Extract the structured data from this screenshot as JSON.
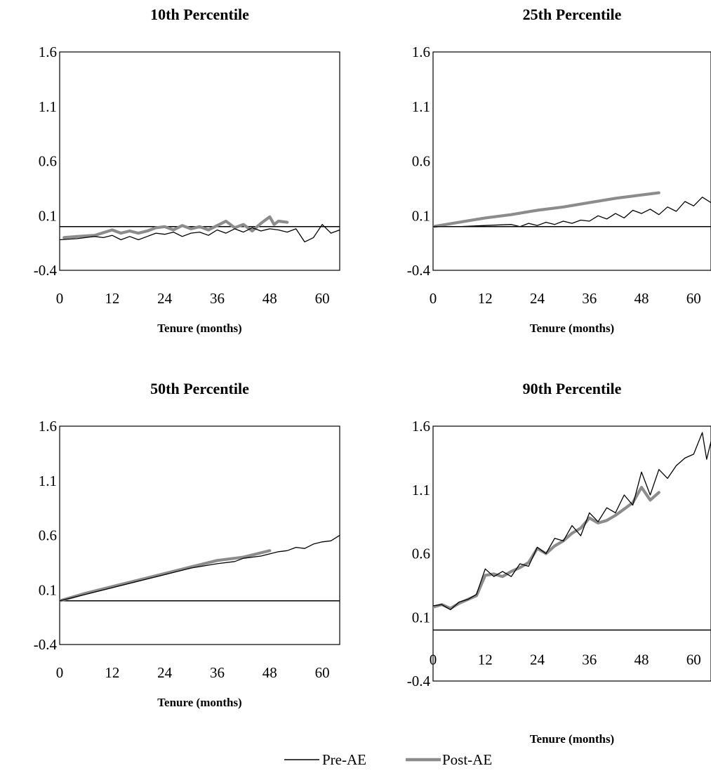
{
  "chart_data": [
    {
      "type": "line",
      "title": "10th Percentile",
      "xlabel": "Tenure (months)",
      "ylabel": "",
      "xlim": [
        0,
        64
      ],
      "ylim": [
        -0.4,
        1.6
      ],
      "xticks": [
        0,
        12,
        24,
        36,
        48,
        60
      ],
      "yticks": [
        -0.4,
        0.1,
        0.6,
        1.1,
        1.6
      ],
      "baseline_y": 0,
      "series": [
        {
          "name": "Pre-AE",
          "x": [
            0,
            4,
            8,
            10,
            12,
            14,
            16,
            18,
            20,
            22,
            24,
            26,
            28,
            30,
            32,
            34,
            36,
            38,
            40,
            42,
            44,
            46,
            48,
            50,
            52,
            54,
            56,
            58,
            60,
            62,
            64
          ],
          "y": [
            -0.12,
            -0.11,
            -0.09,
            -0.1,
            -0.08,
            -0.12,
            -0.09,
            -0.12,
            -0.09,
            -0.06,
            -0.07,
            -0.05,
            -0.09,
            -0.06,
            -0.05,
            -0.08,
            -0.03,
            -0.06,
            -0.02,
            -0.05,
            -0.01,
            -0.04,
            -0.02,
            -0.03,
            -0.05,
            -0.02,
            -0.14,
            -0.1,
            0.02,
            -0.06,
            -0.03
          ]
        },
        {
          "name": "Post-AE",
          "x": [
            1,
            4,
            8,
            12,
            14,
            16,
            18,
            20,
            22,
            24,
            26,
            28,
            30,
            32,
            34,
            36,
            38,
            40,
            42,
            44,
            46,
            48,
            49,
            50,
            52
          ],
          "y": [
            -0.1,
            -0.09,
            -0.08,
            -0.03,
            -0.06,
            -0.04,
            -0.06,
            -0.04,
            -0.01,
            0.0,
            -0.03,
            0.01,
            -0.02,
            0.0,
            -0.03,
            0.01,
            0.05,
            -0.01,
            0.02,
            -0.04,
            0.03,
            0.09,
            0.02,
            0.05,
            0.04
          ]
        }
      ]
    },
    {
      "type": "line",
      "title": "25th Percentile",
      "xlabel": "Tenure (months)",
      "ylabel": "",
      "xlim": [
        0,
        64
      ],
      "ylim": [
        -0.4,
        1.6
      ],
      "xticks": [
        0,
        12,
        24,
        36,
        48,
        60
      ],
      "yticks": [
        -0.4,
        0.1,
        0.6,
        1.1,
        1.6
      ],
      "baseline_y": 0,
      "series": [
        {
          "name": "Pre-AE",
          "x": [
            0,
            6,
            12,
            18,
            20,
            22,
            24,
            26,
            28,
            30,
            32,
            34,
            36,
            38,
            40,
            42,
            44,
            46,
            48,
            50,
            52,
            54,
            56,
            58,
            60,
            62,
            64
          ],
          "y": [
            0.0,
            0.0,
            0.01,
            0.02,
            0.0,
            0.03,
            0.01,
            0.04,
            0.02,
            0.05,
            0.03,
            0.06,
            0.05,
            0.1,
            0.07,
            0.12,
            0.08,
            0.15,
            0.12,
            0.16,
            0.11,
            0.18,
            0.14,
            0.23,
            0.19,
            0.27,
            0.22
          ]
        },
        {
          "name": "Post-AE",
          "x": [
            0,
            6,
            12,
            18,
            24,
            30,
            36,
            42,
            48,
            52
          ],
          "y": [
            0.0,
            0.04,
            0.08,
            0.11,
            0.15,
            0.18,
            0.22,
            0.26,
            0.29,
            0.31
          ]
        }
      ]
    },
    {
      "type": "line",
      "title": "50th Percentile",
      "xlabel": "Tenure (months)",
      "ylabel": "",
      "xlim": [
        0,
        64
      ],
      "ylim": [
        -0.4,
        1.6
      ],
      "xticks": [
        0,
        12,
        24,
        36,
        48,
        60
      ],
      "yticks": [
        -0.4,
        0.1,
        0.6,
        1.1,
        1.6
      ],
      "baseline_y": 0,
      "series": [
        {
          "name": "Pre-AE",
          "x": [
            0,
            6,
            12,
            18,
            24,
            30,
            36,
            40,
            42,
            46,
            48,
            50,
            52,
            54,
            56,
            58,
            60,
            62,
            64
          ],
          "y": [
            0.0,
            0.06,
            0.12,
            0.18,
            0.24,
            0.3,
            0.34,
            0.36,
            0.39,
            0.41,
            0.43,
            0.45,
            0.46,
            0.49,
            0.48,
            0.52,
            0.54,
            0.55,
            0.6
          ]
        },
        {
          "name": "Post-AE",
          "x": [
            0,
            6,
            12,
            18,
            24,
            30,
            36,
            42,
            48
          ],
          "y": [
            0.0,
            0.07,
            0.13,
            0.19,
            0.25,
            0.31,
            0.37,
            0.4,
            0.46
          ]
        }
      ]
    },
    {
      "type": "line",
      "title": "90th Percentile",
      "xlabel": "Tenure (months)",
      "ylabel": "",
      "xlim": [
        0,
        64
      ],
      "ylim": [
        -0.4,
        1.6
      ],
      "xticks": [
        0,
        12,
        24,
        36,
        48,
        60
      ],
      "yticks": [
        -0.4,
        0.1,
        0.6,
        1.1,
        1.6
      ],
      "baseline_y": 0,
      "series": [
        {
          "name": "Pre-AE",
          "x": [
            0,
            2,
            4,
            6,
            8,
            10,
            12,
            14,
            16,
            18,
            20,
            22,
            24,
            26,
            28,
            30,
            32,
            34,
            36,
            38,
            40,
            42,
            44,
            46,
            48,
            50,
            52,
            54,
            56,
            58,
            60,
            62,
            63,
            64
          ],
          "y": [
            0.19,
            0.2,
            0.16,
            0.22,
            0.24,
            0.28,
            0.48,
            0.42,
            0.46,
            0.42,
            0.52,
            0.5,
            0.65,
            0.6,
            0.72,
            0.7,
            0.82,
            0.74,
            0.92,
            0.85,
            0.96,
            0.92,
            1.06,
            0.98,
            1.24,
            1.06,
            1.26,
            1.19,
            1.29,
            1.35,
            1.38,
            1.55,
            1.34,
            1.48
          ]
        },
        {
          "name": "Post-AE",
          "x": [
            0,
            2,
            4,
            6,
            8,
            10,
            12,
            14,
            16,
            18,
            20,
            22,
            24,
            26,
            28,
            30,
            32,
            34,
            36,
            38,
            40,
            42,
            44,
            46,
            48,
            50,
            52
          ],
          "y": [
            0.18,
            0.2,
            0.17,
            0.21,
            0.24,
            0.27,
            0.43,
            0.44,
            0.42,
            0.46,
            0.49,
            0.53,
            0.64,
            0.6,
            0.66,
            0.7,
            0.76,
            0.8,
            0.88,
            0.84,
            0.86,
            0.9,
            0.95,
            1.0,
            1.12,
            1.02,
            1.08
          ]
        }
      ]
    }
  ],
  "legend": {
    "items": [
      {
        "label": "Pre-AE",
        "color": "#000000"
      },
      {
        "label": "Post-AE",
        "color": "#8c8c8c"
      }
    ]
  },
  "colors": {
    "pre_ae": "#000000",
    "post_ae": "#8c8c8c"
  }
}
